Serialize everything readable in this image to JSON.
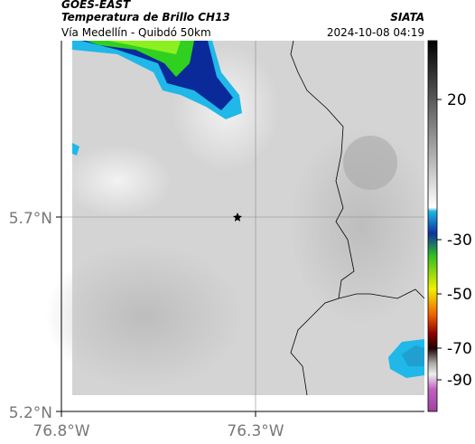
{
  "header": {
    "source": "GOES-EAST",
    "title": "Temperatura de Brillo CH13",
    "credit": "SIATA",
    "subtitle": "Vía Medellín - Quibdó 50km",
    "timestamp": "2024-10-08 04:19"
  },
  "axes": {
    "y_labels": [
      "5.7°N",
      "5.2°N"
    ],
    "x_labels": [
      "76.8°W",
      "76.3°W"
    ]
  },
  "colorbar": {
    "labels": [
      "20",
      "-30",
      "-50",
      "-70",
      "-90"
    ]
  }
}
